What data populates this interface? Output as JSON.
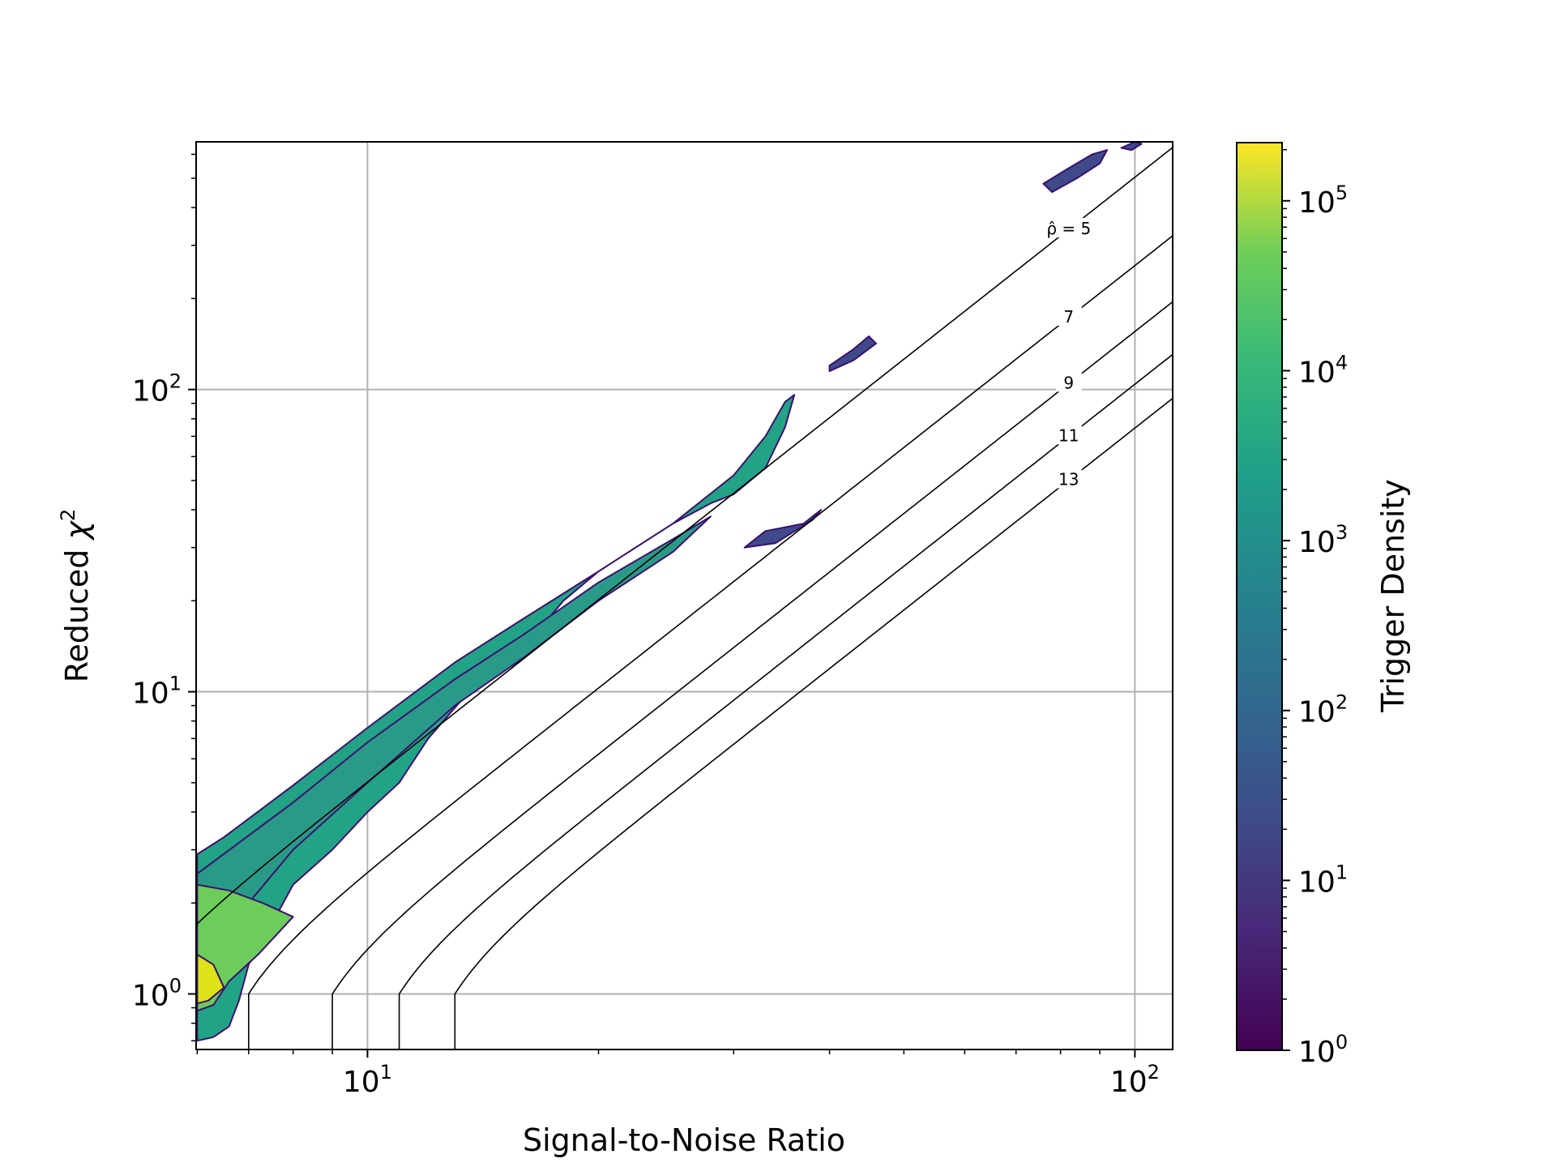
{
  "chart_data": {
    "type": "heatmap",
    "subtype": "hexbin",
    "xlabel": "Signal-to-Noise Ratio",
    "ylabel_text": "Reduced ",
    "ylabel_symbol": "χ",
    "ylabel_sup": "2",
    "x_scale": "log",
    "y_scale": "log",
    "xlim": [
      5.98,
      112
    ],
    "ylim": [
      0.655,
      660
    ],
    "x_ticks": [
      {
        "base": "10",
        "exp": "1",
        "value": 10
      },
      {
        "base": "10",
        "exp": "2",
        "value": 100
      }
    ],
    "y_ticks": [
      {
        "base": "10",
        "exp": "0",
        "value": 1
      },
      {
        "base": "10",
        "exp": "1",
        "value": 10
      },
      {
        "base": "10",
        "exp": "2",
        "value": 100
      }
    ],
    "grid": true,
    "colorbar": {
      "label": "Trigger Density",
      "scale": "log",
      "range": [
        1,
        220000
      ],
      "colormap": "viridis",
      "ticks": [
        {
          "base": "10",
          "exp": "0",
          "value": 1
        },
        {
          "base": "10",
          "exp": "1",
          "value": 10
        },
        {
          "base": "10",
          "exp": "2",
          "value": 100
        },
        {
          "base": "10",
          "exp": "3",
          "value": 1000
        },
        {
          "base": "10",
          "exp": "4",
          "value": 10000
        },
        {
          "base": "10",
          "exp": "5",
          "value": 100000
        }
      ]
    },
    "contours": [
      {
        "rho": 5,
        "label": "ρ̂ = 5",
        "label_at_snr": 82
      },
      {
        "rho": 7,
        "label": "7",
        "label_at_snr": 82
      },
      {
        "rho": 9,
        "label": "9",
        "label_at_snr": 82
      },
      {
        "rho": 11,
        "label": "11",
        "label_at_snr": 82
      },
      {
        "rho": 13,
        "label": "13",
        "label_at_snr": 82
      }
    ],
    "density_regions": [
      {
        "name": "main-band",
        "color": "#22a385",
        "boundary": [
          [
            6.0,
            2.9
          ],
          [
            6.5,
            3.3
          ],
          [
            8,
            4.9
          ],
          [
            10,
            7.6
          ],
          [
            13,
            12.5
          ],
          [
            16,
            17.5
          ],
          [
            20,
            25
          ],
          [
            25,
            36
          ],
          [
            30,
            52
          ],
          [
            33,
            70
          ],
          [
            35,
            91
          ],
          [
            36,
            96
          ],
          [
            35,
            75
          ],
          [
            33,
            55
          ],
          [
            30,
            45
          ],
          [
            28,
            42
          ],
          [
            25,
            36
          ],
          [
            20,
            25
          ],
          [
            18,
            20
          ],
          [
            16,
            14
          ],
          [
            14,
            11
          ],
          [
            12,
            7
          ],
          [
            11,
            5
          ],
          [
            10,
            4
          ],
          [
            9,
            3
          ],
          [
            8,
            2.3
          ],
          [
            7.5,
            1.7
          ],
          [
            7,
            1.25
          ],
          [
            6.8,
            0.95
          ],
          [
            6.6,
            0.78
          ],
          [
            6.3,
            0.72
          ],
          [
            6.0,
            0.7
          ]
        ]
      },
      {
        "name": "main-core",
        "color": "#2a9a88",
        "boundary": [
          [
            6.0,
            2.5
          ],
          [
            8,
            4.3
          ],
          [
            10,
            6.8
          ],
          [
            13,
            11
          ],
          [
            16,
            15.5
          ],
          [
            20,
            23
          ],
          [
            25,
            32
          ],
          [
            28,
            38
          ],
          [
            25,
            29
          ],
          [
            20,
            20
          ],
          [
            16,
            13
          ],
          [
            13,
            9
          ],
          [
            10,
            5
          ],
          [
            8,
            3
          ],
          [
            7,
            2
          ],
          [
            6.5,
            1.5
          ],
          [
            6.0,
            1.3
          ]
        ]
      },
      {
        "name": "high-density-tail",
        "color": "#6ccd5a",
        "boundary": [
          [
            6.0,
            2.3
          ],
          [
            6.6,
            2.2
          ],
          [
            7.3,
            2.0
          ],
          [
            8,
            1.8
          ],
          [
            7.2,
            1.35
          ],
          [
            6.6,
            1.1
          ],
          [
            6.3,
            0.92
          ],
          [
            6.0,
            0.88
          ]
        ]
      },
      {
        "name": "peak-density",
        "color": "#dde318",
        "boundary": [
          [
            6.0,
            1.35
          ],
          [
            6.3,
            1.25
          ],
          [
            6.5,
            1.05
          ],
          [
            6.2,
            0.95
          ],
          [
            6.0,
            0.93
          ]
        ]
      },
      {
        "name": "sparse-island-1",
        "color": "#3e4a89",
        "boundary": [
          [
            33,
            34
          ],
          [
            37,
            36
          ],
          [
            39,
            40
          ],
          [
            38,
            37
          ],
          [
            34,
            31
          ],
          [
            31,
            30
          ]
        ]
      },
      {
        "name": "sparse-island-2",
        "color": "#3e4a89",
        "boundary": [
          [
            40,
            120
          ],
          [
            43,
            136
          ],
          [
            45,
            150
          ],
          [
            46,
            142
          ],
          [
            43,
            125
          ],
          [
            40,
            115
          ]
        ]
      },
      {
        "name": "sparse-island-3",
        "color": "#3e4a89",
        "boundary": [
          [
            76,
            480
          ],
          [
            82,
            540
          ],
          [
            88,
            600
          ],
          [
            92,
            620
          ],
          [
            90,
            560
          ],
          [
            84,
            500
          ],
          [
            78,
            450
          ]
        ]
      },
      {
        "name": "sparse-island-4",
        "color": "#3e4a89",
        "boundary": [
          [
            96,
            630
          ],
          [
            100,
            660
          ],
          [
            102,
            650
          ],
          [
            99,
            620
          ]
        ]
      }
    ]
  }
}
